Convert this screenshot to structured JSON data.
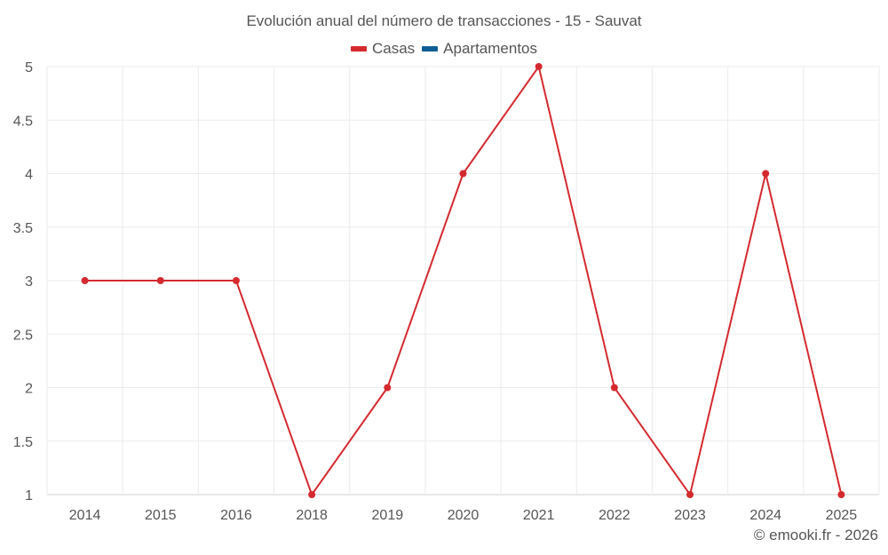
{
  "chart_data": {
    "type": "line",
    "title": "Evolución anual del número de transacciones - 15 - Sauvat",
    "xlabel": "",
    "ylabel": "",
    "categories": [
      "2014",
      "2015",
      "2016",
      "2018",
      "2019",
      "2020",
      "2021",
      "2022",
      "2023",
      "2024",
      "2025"
    ],
    "series": [
      {
        "name": "Casas",
        "color": "#d42a2f",
        "values": [
          3,
          3,
          3,
          1,
          2,
          4,
          5,
          2,
          1,
          4,
          1
        ]
      },
      {
        "name": "Apartamentos",
        "color": "#0f5f96",
        "values": []
      }
    ],
    "ylim": [
      1,
      5
    ],
    "yticks": [
      "1",
      "1.5",
      "2",
      "2.5",
      "3",
      "3.5",
      "4",
      "4.5",
      "5"
    ],
    "grid": true,
    "legend_position": "top"
  },
  "header": {
    "title": "Evolución anual del número de transacciones - 15 - Sauvat"
  },
  "legend": {
    "items": [
      {
        "label": "Casas",
        "color": "#d42a2f"
      },
      {
        "label": "Apartamentos",
        "color": "#0f5f96"
      }
    ]
  },
  "footer": {
    "credit": "© emooki.fr - 2026"
  }
}
